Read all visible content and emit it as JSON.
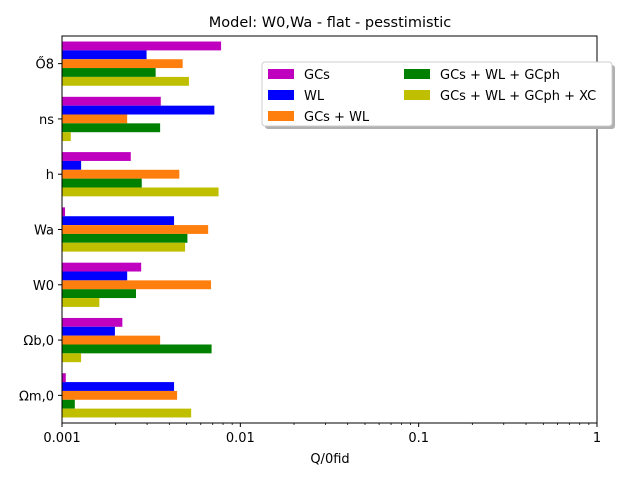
{
  "chart_data": {
    "type": "bar",
    "orientation": "horizontal",
    "title": "Model: W0,Wa - flat - pesstimistic",
    "xlabel": "Q/0fid",
    "ylabel": "",
    "xscale": "log",
    "xlim": [
      0.001,
      1
    ],
    "xticks": [
      "0.001",
      "0.01",
      "0.1",
      "1"
    ],
    "grid": false,
    "legend_position": "upper-right",
    "categories": [
      "Ωm,0",
      "Ωb,0",
      "W0",
      "Wa",
      "h",
      "ns",
      "Ő8"
    ],
    "series": [
      {
        "name": "GCs",
        "color": "#bf00bf",
        "values": [
          0.00105,
          0.00218,
          0.00278,
          0.00104,
          0.00243,
          0.00358,
          0.0078
        ]
      },
      {
        "name": "WL",
        "color": "#0000ff",
        "values": [
          0.00425,
          0.00198,
          0.00232,
          0.00425,
          0.00128,
          0.00715,
          0.00298
        ]
      },
      {
        "name": "GCs + WL",
        "color": "#ff7f0e",
        "values": [
          0.00442,
          0.00355,
          0.00685,
          0.0066,
          0.00455,
          0.00232,
          0.00475
        ]
      },
      {
        "name": "GCs + WL + GCph",
        "color": "#008000",
        "values": [
          0.00118,
          0.0069,
          0.0026,
          0.00505,
          0.0028,
          0.00355,
          0.00335
        ]
      },
      {
        "name": "GCs + WL + GCph + XC",
        "color": "#bfbf00",
        "values": [
          0.0053,
          0.00128,
          0.00162,
          0.0049,
          0.00755,
          0.00112,
          0.00515
        ]
      }
    ]
  }
}
